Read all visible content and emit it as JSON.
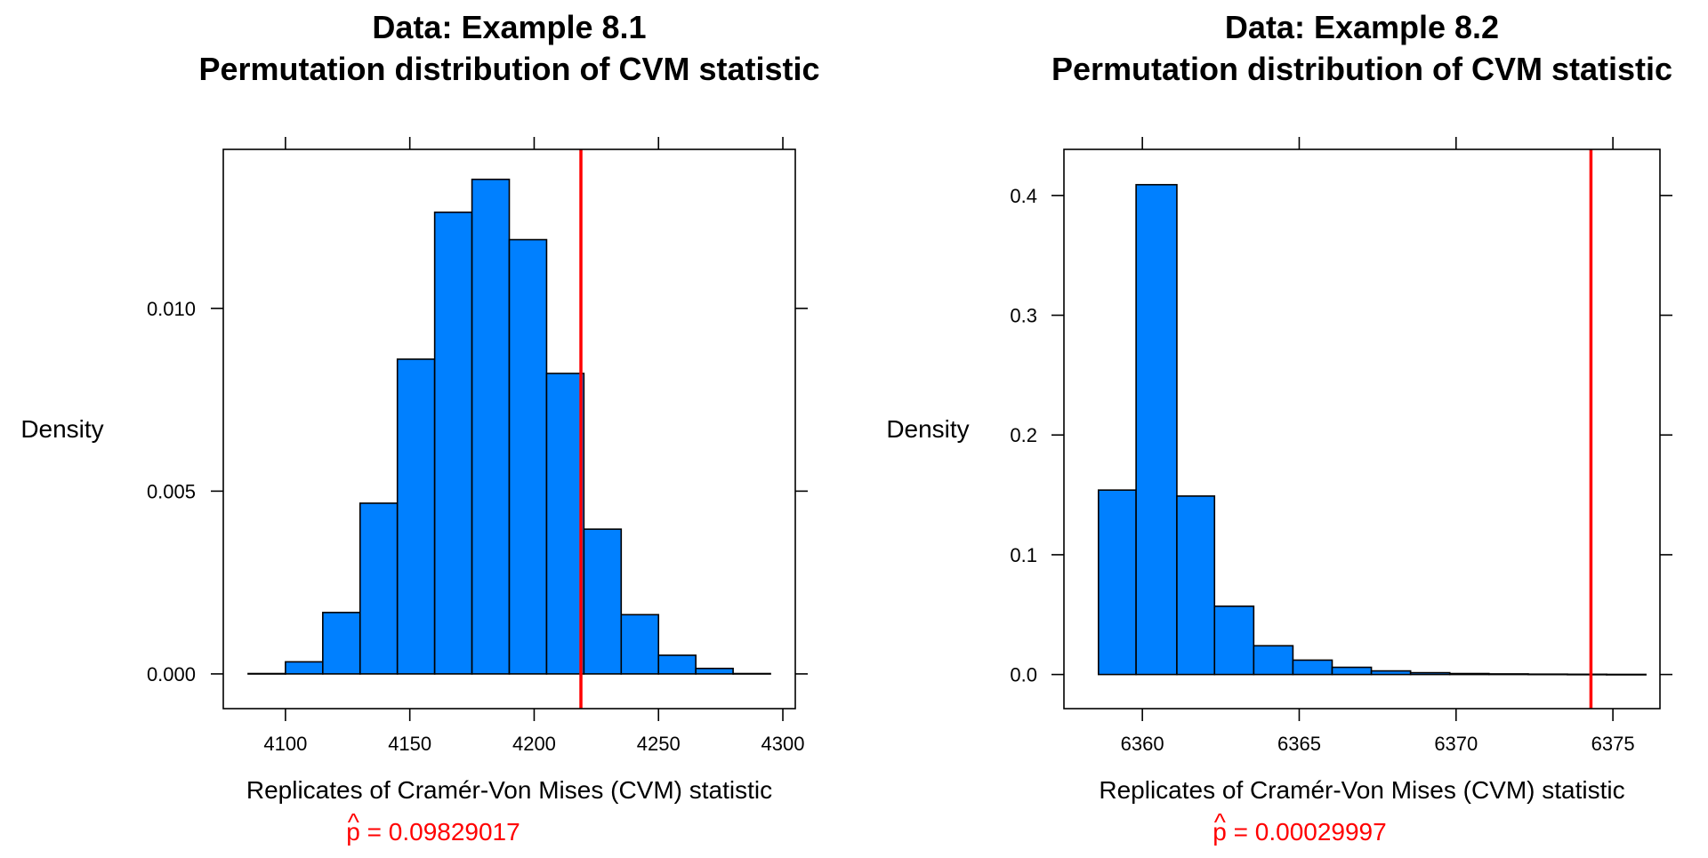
{
  "chart_data": [
    {
      "type": "bar",
      "title": "Data: Example 8.1",
      "subtitle": "Permutation distribution of CVM statistic",
      "xlabel": "Replicates of Cramér-Von Mises (CVM) statistic",
      "ylabel": "Density",
      "xlim": [
        4075,
        4305
      ],
      "ylim": [
        -0.00095,
        0.01435
      ],
      "xticks": [
        4100,
        4150,
        4200,
        4250,
        4300
      ],
      "yticks": [
        0.0,
        0.005,
        0.01
      ],
      "ytick_labels": [
        "0.000",
        "0.005",
        "0.010"
      ],
      "bin_edges": [
        4085,
        4100,
        4115,
        4130,
        4145,
        4160,
        4175,
        4190,
        4205,
        4220,
        4235,
        4250,
        4265,
        4280,
        4295
      ],
      "values": [
        1e-05,
        0.00033,
        0.00168,
        0.00467,
        0.00861,
        0.01263,
        0.01353,
        0.01188,
        0.00822,
        0.00396,
        0.00162,
        0.00051,
        0.00015,
        1e-05
      ],
      "observed": 4218.8,
      "observed_color": "#ff0000",
      "bar_color": "#0080ff",
      "p_label": "p",
      "p_hat": "^",
      "p_value": "= 0.09829017"
    },
    {
      "type": "bar",
      "title": "Data: Example 8.2",
      "subtitle": "Permutation distribution of CVM statistic",
      "xlabel": "Replicates of Cramér-Von Mises (CVM) statistic",
      "ylabel": "Density",
      "xlim": [
        6357.5,
        6376.5
      ],
      "ylim": [
        -0.0285,
        0.4385
      ],
      "xticks": [
        6360,
        6365,
        6370,
        6375
      ],
      "yticks": [
        0.0,
        0.1,
        0.2,
        0.3,
        0.4
      ],
      "ytick_labels": [
        "0.0",
        "0.1",
        "0.2",
        "0.3",
        "0.4"
      ],
      "bin_edges": [
        6358.6,
        6359.8,
        6361.1,
        6362.3,
        6363.55,
        6364.8,
        6366.05,
        6367.3,
        6368.55,
        6369.8,
        6371.05,
        6372.3,
        6373.55,
        6374.8,
        6376.05
      ],
      "values": [
        0.154,
        0.409,
        0.149,
        0.057,
        0.024,
        0.012,
        0.006,
        0.003,
        0.0015,
        0.0008,
        0.0005,
        0.0003,
        0.0002,
        0.0001
      ],
      "observed": 6374.3,
      "observed_color": "#ff0000",
      "bar_color": "#0080ff",
      "p_label": "p",
      "p_hat": "^",
      "p_value": "= 0.00029997"
    }
  ]
}
